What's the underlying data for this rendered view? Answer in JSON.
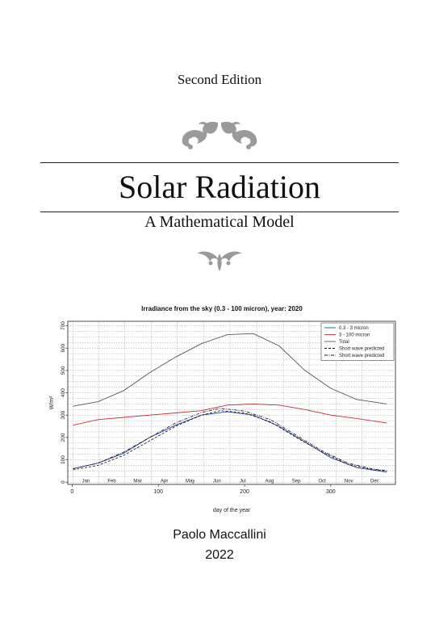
{
  "cover": {
    "edition": "Second Edition",
    "title": "Solar Radiation",
    "subtitle": "A Mathematical Model",
    "author": "Paolo Maccallini",
    "year": "2022",
    "ornament_top": "floral-scroll-ornament",
    "ornament_mid": "fleuron-ornament",
    "ornament_color": "#9a9a9a"
  },
  "chart_data": {
    "type": "line",
    "title": "Irradiance from the sky (0.3 - 100 micron), year: 2020",
    "xlabel": "day of the year",
    "ylabel": "W/m²",
    "xlim": [
      -5,
      375
    ],
    "ylim": [
      -10,
      720
    ],
    "x_ticks": [
      0,
      100,
      200,
      300
    ],
    "y_ticks": [
      0,
      100,
      200,
      300,
      400,
      500,
      600,
      700
    ],
    "months": [
      {
        "label": "Jan",
        "day": 16
      },
      {
        "label": "Feb",
        "day": 46
      },
      {
        "label": "Mar",
        "day": 76
      },
      {
        "label": "Apr",
        "day": 107
      },
      {
        "label": "May",
        "day": 137
      },
      {
        "label": "Jun",
        "day": 168
      },
      {
        "label": "Jul",
        "day": 198
      },
      {
        "label": "Aug",
        "day": 229
      },
      {
        "label": "Sep",
        "day": 260
      },
      {
        "label": "Oct",
        "day": 290
      },
      {
        "label": "Nov",
        "day": 321
      },
      {
        "label": "Dec",
        "day": 351
      }
    ],
    "grid": true,
    "legend_position": "top-right",
    "series": [
      {
        "name": "0.3 - 3 micron",
        "color": "#2a3f9e",
        "style": "solid",
        "x": [
          1,
          30,
          60,
          90,
          120,
          150,
          180,
          210,
          240,
          270,
          300,
          330,
          365
        ],
        "y": [
          60,
          85,
          130,
          200,
          255,
          300,
          315,
          300,
          250,
          180,
          110,
          65,
          45
        ]
      },
      {
        "name": "3 - 100 micron",
        "color": "#c0303c",
        "style": "solid",
        "x": [
          1,
          30,
          60,
          90,
          120,
          150,
          180,
          210,
          240,
          270,
          300,
          330,
          365
        ],
        "y": [
          255,
          280,
          290,
          300,
          310,
          320,
          345,
          350,
          345,
          325,
          300,
          285,
          265
        ]
      },
      {
        "name": "Total",
        "color": "#555555",
        "style": "solid",
        "x": [
          1,
          30,
          60,
          90,
          120,
          150,
          180,
          210,
          240,
          270,
          300,
          330,
          365
        ],
        "y": [
          340,
          360,
          410,
          490,
          560,
          620,
          660,
          665,
          610,
          500,
          420,
          370,
          350
        ]
      },
      {
        "name": "Short wave predicted",
        "color": "#111111",
        "style": "dashed",
        "x": [
          1,
          30,
          60,
          90,
          120,
          150,
          172,
          200,
          230,
          260,
          290,
          320,
          350,
          365
        ],
        "y": [
          55,
          75,
          120,
          185,
          250,
          300,
          320,
          310,
          270,
          200,
          135,
          80,
          55,
          50
        ]
      },
      {
        "name": "Short wave predicted",
        "color": "#111111",
        "style": "dashdot",
        "x": [
          1,
          30,
          60,
          90,
          120,
          150,
          172,
          200,
          230,
          260,
          290,
          320,
          350,
          365
        ],
        "y": [
          60,
          85,
          135,
          200,
          265,
          312,
          330,
          318,
          280,
          210,
          140,
          85,
          58,
          52
        ]
      }
    ]
  }
}
